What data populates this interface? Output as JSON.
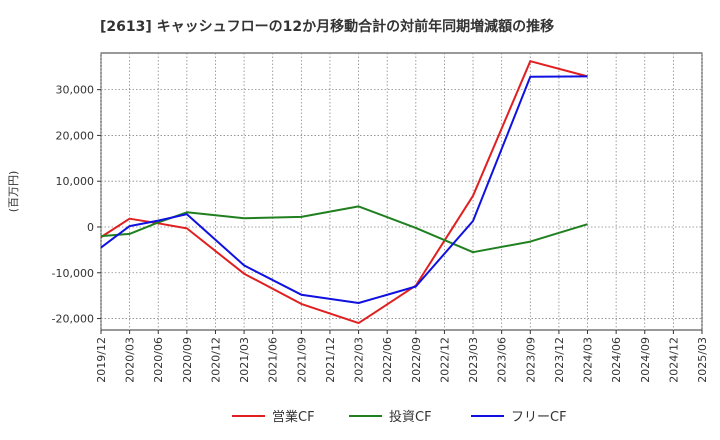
{
  "chart_data": {
    "type": "line",
    "title": "[2613]  キャッシュフローの12か月移動合計の対前年同期増減額の推移",
    "ylabel": "(百万円)",
    "xlabel": "",
    "ylim": [
      -22500,
      38000
    ],
    "yticks": [
      -20000,
      -10000,
      0,
      10000,
      20000,
      30000
    ],
    "ytick_labels": [
      "-20,000",
      "-10,000",
      "0",
      "10,000",
      "20,000",
      "30,000"
    ],
    "x_ticks": [
      "2019/12",
      "2020/03",
      "2020/06",
      "2020/09",
      "2020/12",
      "2021/03",
      "2021/06",
      "2021/09",
      "2021/12",
      "2022/03",
      "2022/06",
      "2022/09",
      "2022/12",
      "2023/03",
      "2023/06",
      "2023/09",
      "2023/12",
      "2024/03",
      "2024/06",
      "2024/09",
      "2024/12",
      "2025/03"
    ],
    "grid": true,
    "legend_position": "bottom",
    "series": [
      {
        "name": "営業CF",
        "color": "#e02020",
        "points": [
          {
            "x": "2019/12",
            "y": -2200
          },
          {
            "x": "2020/03",
            "y": 1800
          },
          {
            "x": "2020/06",
            "y": 800
          },
          {
            "x": "2020/09",
            "y": -300
          },
          {
            "x": "2021/03",
            "y": -10200
          },
          {
            "x": "2021/09",
            "y": -16800
          },
          {
            "x": "2022/03",
            "y": -21000
          },
          {
            "x": "2022/09",
            "y": -12800
          },
          {
            "x": "2023/03",
            "y": 6800
          },
          {
            "x": "2023/09",
            "y": 36200
          },
          {
            "x": "2024/03",
            "y": 32900
          }
        ]
      },
      {
        "name": "投資CF",
        "color": "#208020",
        "points": [
          {
            "x": "2019/12",
            "y": -2000
          },
          {
            "x": "2020/03",
            "y": -1500
          },
          {
            "x": "2020/06",
            "y": 1000
          },
          {
            "x": "2020/09",
            "y": 3200
          },
          {
            "x": "2021/03",
            "y": 1900
          },
          {
            "x": "2021/09",
            "y": 2200
          },
          {
            "x": "2022/03",
            "y": 4500
          },
          {
            "x": "2022/09",
            "y": -200
          },
          {
            "x": "2023/03",
            "y": -5500
          },
          {
            "x": "2023/09",
            "y": -3200
          },
          {
            "x": "2024/03",
            "y": 600
          }
        ]
      },
      {
        "name": "フリーCF",
        "color": "#1010e0",
        "points": [
          {
            "x": "2019/12",
            "y": -4500
          },
          {
            "x": "2020/03",
            "y": 200
          },
          {
            "x": "2020/06",
            "y": 1400
          },
          {
            "x": "2020/09",
            "y": 2800
          },
          {
            "x": "2021/03",
            "y": -8400
          },
          {
            "x": "2021/09",
            "y": -14800
          },
          {
            "x": "2022/03",
            "y": -16600
          },
          {
            "x": "2022/09",
            "y": -13000
          },
          {
            "x": "2023/03",
            "y": 1300
          },
          {
            "x": "2023/09",
            "y": 32800
          },
          {
            "x": "2024/03",
            "y": 32900
          }
        ]
      }
    ]
  }
}
